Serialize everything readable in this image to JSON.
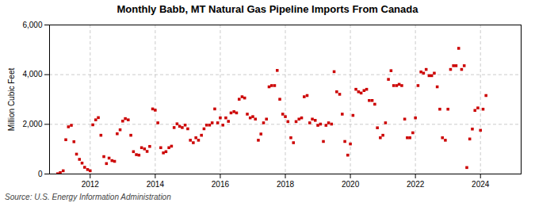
{
  "chart_data": {
    "type": "scatter",
    "title": "Monthly Babb, MT Natural Gas Pipeline Imports From Canada",
    "ylabel": "Million Cubic Feet",
    "source": "Source: U.S. Energy Information Administration",
    "color": "#CC0000",
    "marker": "square",
    "grid": true,
    "xlim": [
      2010.75,
      2025.25
    ],
    "xticks": [
      2012,
      2014,
      2016,
      2018,
      2020,
      2022,
      2024
    ],
    "ylim": [
      0,
      6000
    ],
    "yticks": [
      0,
      {
        "value": 2000,
        "label": "2,000"
      },
      {
        "value": 4000,
        "label": "4,000"
      },
      {
        "value": 6000,
        "label": "6,000"
      }
    ],
    "x": [
      2011.0,
      2011.08,
      2011.17,
      2011.25,
      2011.33,
      2011.42,
      2011.5,
      2011.58,
      2011.67,
      2011.75,
      2011.83,
      2011.92,
      2012.0,
      2012.08,
      2012.17,
      2012.25,
      2012.33,
      2012.42,
      2012.5,
      2012.58,
      2012.67,
      2012.75,
      2012.83,
      2012.92,
      2013.0,
      2013.08,
      2013.17,
      2013.25,
      2013.33,
      2013.42,
      2013.5,
      2013.58,
      2013.67,
      2013.75,
      2013.83,
      2013.92,
      2014.0,
      2014.08,
      2014.17,
      2014.25,
      2014.33,
      2014.42,
      2014.5,
      2014.58,
      2014.67,
      2014.75,
      2014.83,
      2014.92,
      2015.0,
      2015.08,
      2015.17,
      2015.25,
      2015.33,
      2015.42,
      2015.5,
      2015.58,
      2015.67,
      2015.75,
      2015.83,
      2015.92,
      2016.0,
      2016.08,
      2016.17,
      2016.25,
      2016.33,
      2016.42,
      2016.5,
      2016.58,
      2016.67,
      2016.75,
      2016.83,
      2016.92,
      2017.0,
      2017.08,
      2017.17,
      2017.25,
      2017.33,
      2017.42,
      2017.5,
      2017.58,
      2017.67,
      2017.75,
      2017.83,
      2017.92,
      2018.0,
      2018.08,
      2018.17,
      2018.25,
      2018.33,
      2018.42,
      2018.5,
      2018.58,
      2018.67,
      2018.75,
      2018.83,
      2018.92,
      2019.0,
      2019.08,
      2019.17,
      2019.25,
      2019.33,
      2019.42,
      2019.5,
      2019.58,
      2019.67,
      2019.75,
      2019.83,
      2019.92,
      2020.0,
      2020.08,
      2020.17,
      2020.25,
      2020.33,
      2020.42,
      2020.5,
      2020.58,
      2020.67,
      2020.75,
      2020.83,
      2020.92,
      2021.0,
      2021.08,
      2021.17,
      2021.25,
      2021.33,
      2021.42,
      2021.5,
      2021.58,
      2021.67,
      2021.75,
      2021.83,
      2021.92,
      2022.0,
      2022.08,
      2022.17,
      2022.25,
      2022.33,
      2022.42,
      2022.5,
      2022.58,
      2022.67,
      2022.75,
      2022.83,
      2022.92,
      2023.0,
      2023.08,
      2023.17,
      2023.25,
      2023.33,
      2023.42,
      2023.5,
      2023.58,
      2023.67,
      2023.75,
      2023.83,
      2023.92,
      2024.0,
      2024.08,
      2024.17
    ],
    "values": [
      10,
      55,
      130,
      1380,
      1900,
      1960,
      1300,
      800,
      590,
      440,
      270,
      180,
      130,
      1980,
      2180,
      2270,
      1560,
      700,
      420,
      640,
      540,
      510,
      1620,
      1780,
      2130,
      2230,
      2180,
      1560,
      900,
      780,
      760,
      1060,
      1010,
      910,
      1110,
      2620,
      2570,
      2060,
      1060,
      850,
      900,
      1060,
      1120,
      1870,
      2020,
      1920,
      1870,
      1970,
      1820,
      1360,
      1260,
      1460,
      1360,
      1560,
      1820,
      1970,
      1970,
      2060,
      2620,
      2060,
      2260,
      1970,
      2260,
      2120,
      2460,
      2510,
      2460,
      3010,
      3110,
      3060,
      2410,
      2260,
      2310,
      2210,
      1360,
      1610,
      2060,
      2210,
      3510,
      3560,
      3560,
      4170,
      3010,
      2410,
      2310,
      2110,
      1460,
      1260,
      2110,
      2210,
      2260,
      3110,
      3160,
      2060,
      2210,
      2160,
      1960,
      2010,
      1310,
      1960,
      2060,
      2010,
      4120,
      3310,
      3210,
      2410,
      1310,
      760,
      1210,
      2360,
      3410,
      3310,
      3260,
      3360,
      3410,
      2960,
      2960,
      2810,
      1860,
      1460,
      1560,
      2060,
      3810,
      4160,
      3560,
      3560,
      3610,
      3560,
      2210,
      1460,
      1460,
      1660,
      2260,
      3560,
      4110,
      4060,
      4210,
      3960,
      3960,
      4060,
      3510,
      2610,
      1460,
      1360,
      2610,
      4210,
      4360,
      4360,
      5060,
      4210,
      4360,
      260,
      1410,
      1810,
      2560,
      2660,
      1760,
      2610,
      3160
    ]
  }
}
